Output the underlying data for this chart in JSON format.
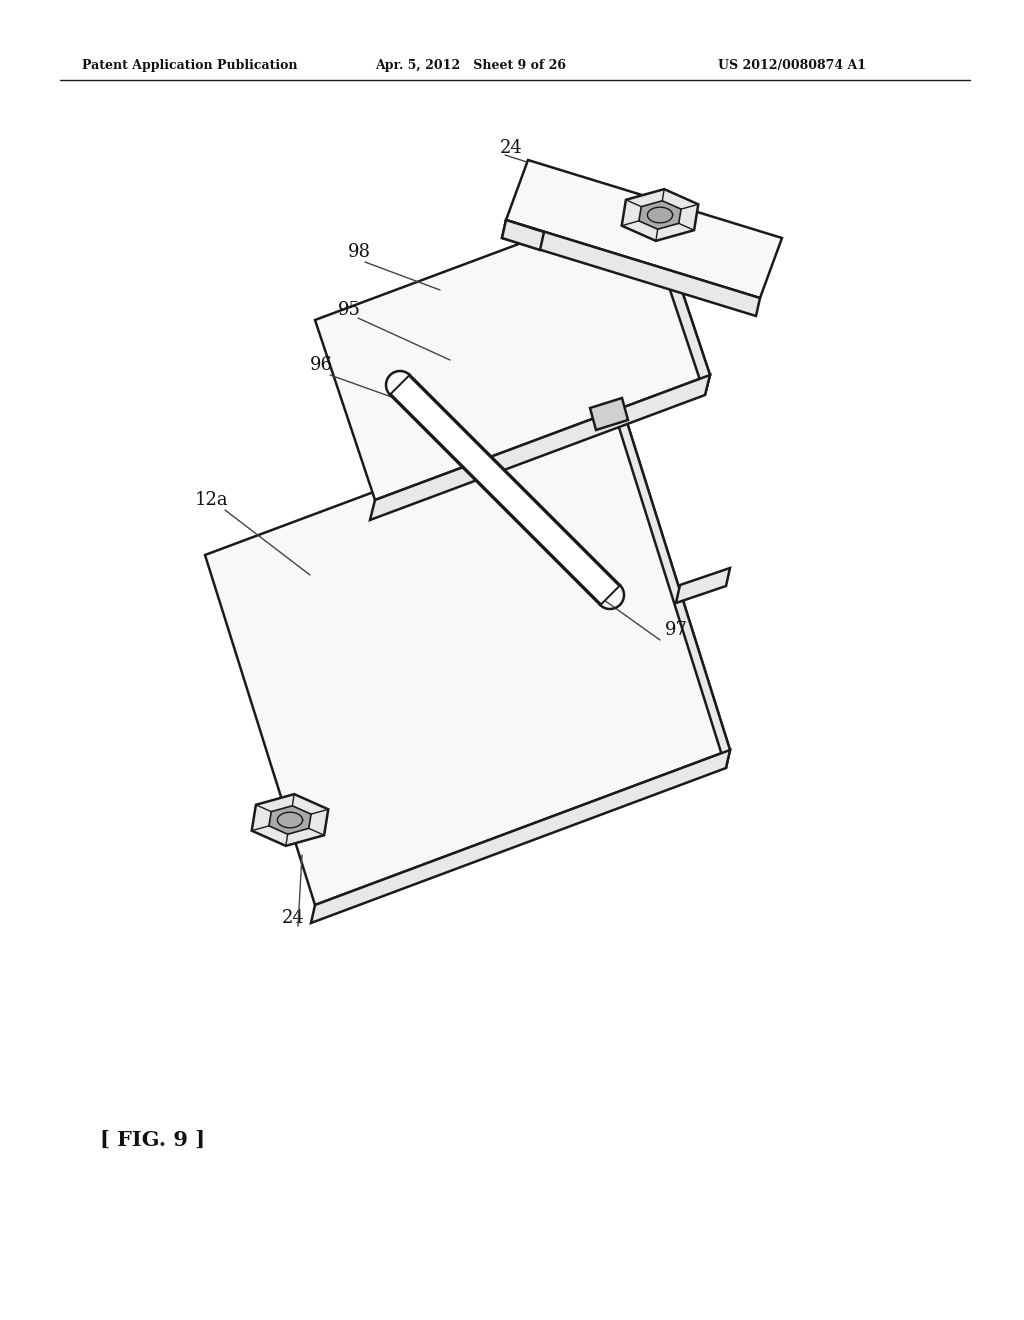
{
  "bg_color": "#ffffff",
  "header_left": "Patent Application Publication",
  "header_center": "Apr. 5, 2012   Sheet 9 of 26",
  "header_right": "US 2012/0080874 A1",
  "figure_label": "[ FIG. 9 ]",
  "line_color": "#1a1a1a",
  "face_color_light": "#f8f8f8",
  "face_color_mid": "#e8e8e8",
  "face_color_dark": "#d0d0d0",
  "lw": 1.8
}
